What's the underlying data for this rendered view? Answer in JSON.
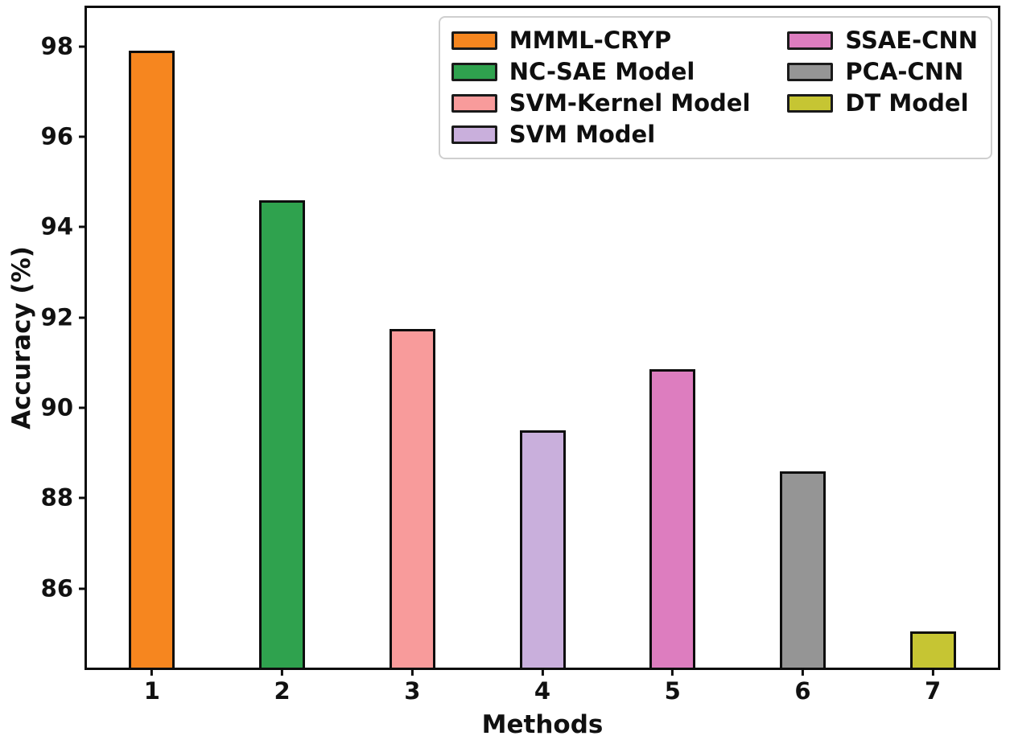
{
  "chart_data": {
    "type": "bar",
    "title": "",
    "xlabel": "Methods",
    "ylabel": "Accuracy (%)",
    "categories": [
      "1",
      "2",
      "3",
      "4",
      "5",
      "6",
      "7"
    ],
    "series": [
      {
        "name": "MMML-CRYP",
        "color": "#F6861F",
        "value": 97.9
      },
      {
        "name": "NC-SAE Model",
        "color": "#2FA24E",
        "value": 94.6
      },
      {
        "name": "SVM-Kernel Model",
        "color": "#F89B9B",
        "value": 91.75
      },
      {
        "name": "SVM Model",
        "color": "#C9AFDC",
        "value": 89.5
      },
      {
        "name": "SSAE-CNN",
        "color": "#DD7DBF",
        "value": 90.85
      },
      {
        "name": "PCA-CNN",
        "color": "#959595",
        "value": 88.6
      },
      {
        "name": "DT Model",
        "color": "#C6C533",
        "value": 85.05
      }
    ],
    "ylim": [
      84.25,
      98.85
    ],
    "yticks": [
      86,
      88,
      90,
      92,
      94,
      96,
      98
    ],
    "grid": false,
    "legend_position": "upper right",
    "legend_columns": [
      [
        0,
        1,
        2,
        3
      ],
      [
        4,
        5,
        6
      ]
    ],
    "bar_edge_color": "#0d0d0d",
    "axis_color": "#0d0d0d"
  }
}
